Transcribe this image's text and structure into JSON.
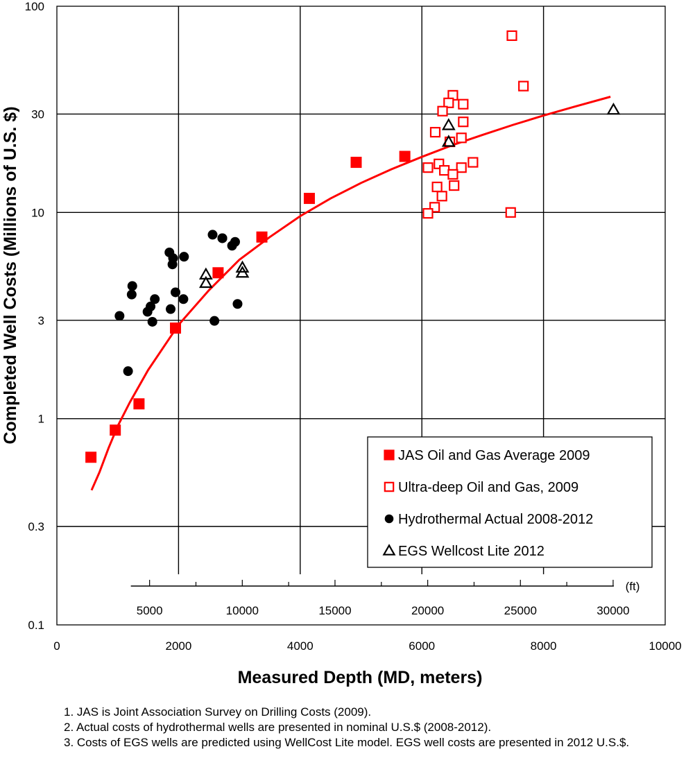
{
  "chart_data": {
    "type": "scatter",
    "title": "",
    "xlabel": "Measured Depth (MD, meters)",
    "ylabel": "Completed Well Costs (Millions of U.S. $)",
    "xlim": [
      0,
      10000
    ],
    "ylim": [
      0.1,
      100
    ],
    "yscale": "log",
    "grid": true,
    "legend_position": "bottom-right",
    "x_ticks": [
      "0",
      "2000",
      "4000",
      "6000",
      "8000",
      "10000"
    ],
    "y_ticks": [
      "0.1",
      "0.3",
      "1",
      "3",
      "10",
      "30",
      "100"
    ],
    "y_tick_values": [
      0.1,
      0.3,
      1,
      3,
      10,
      30,
      100
    ],
    "secondary_x_axis": {
      "unit_label": "(ft)",
      "ticks": [
        "5000",
        "10000",
        "15000",
        "20000",
        "25000",
        "30000"
      ],
      "tick_values": [
        5000,
        10000,
        15000,
        20000,
        25000,
        30000
      ]
    },
    "series": [
      {
        "name": "JAS Oil and Gas Average 2009",
        "marker": "filled-square",
        "color": "#ff0000",
        "points": [
          [
            560,
            0.65
          ],
          [
            960,
            0.88
          ],
          [
            1350,
            1.18
          ],
          [
            1950,
            2.75
          ],
          [
            2650,
            5.1
          ],
          [
            3370,
            7.6
          ],
          [
            4150,
            11.7
          ],
          [
            4920,
            17.5
          ],
          [
            5720,
            18.7
          ]
        ]
      },
      {
        "name": "Ultra-deep Oil and Gas, 2009",
        "marker": "open-square",
        "color": "#ff0000",
        "points": [
          [
            7480,
            72
          ],
          [
            7670,
            41
          ],
          [
            6510,
            37
          ],
          [
            6440,
            34
          ],
          [
            6680,
            33.5
          ],
          [
            6340,
            31
          ],
          [
            6680,
            27.5
          ],
          [
            6220,
            24.5
          ],
          [
            6650,
            23
          ],
          [
            6460,
            22
          ],
          [
            6840,
            17.5
          ],
          [
            6280,
            17.2
          ],
          [
            6100,
            16.5
          ],
          [
            6650,
            16.5
          ],
          [
            6370,
            16
          ],
          [
            6510,
            15.3
          ],
          [
            6250,
            13.3
          ],
          [
            6530,
            13.5
          ],
          [
            6330,
            12.0
          ],
          [
            6210,
            10.6
          ],
          [
            6100,
            9.9
          ],
          [
            7460,
            10.0
          ]
        ]
      },
      {
        "name": "Hydrothermal Actual 2008-2012",
        "marker": "filled-circle",
        "color": "#000000",
        "points": [
          [
            1030,
            3.15
          ],
          [
            1170,
            1.7
          ],
          [
            1230,
            4.0
          ],
          [
            1240,
            4.4
          ],
          [
            1490,
            3.3
          ],
          [
            1540,
            3.5
          ],
          [
            1570,
            2.95
          ],
          [
            1610,
            3.8
          ],
          [
            1850,
            6.4
          ],
          [
            1870,
            3.4
          ],
          [
            1900,
            5.6
          ],
          [
            1910,
            6.0
          ],
          [
            1950,
            4.1
          ],
          [
            2080,
            3.8
          ],
          [
            2090,
            6.1
          ],
          [
            2560,
            7.8
          ],
          [
            2590,
            2.98
          ],
          [
            2720,
            7.5
          ],
          [
            2720,
            7.5
          ],
          [
            2880,
            6.9
          ],
          [
            2930,
            7.2
          ],
          [
            2970,
            3.6
          ]
        ]
      },
      {
        "name": "EGS Wellcost Lite 2012",
        "marker": "open-triangle",
        "color": "#000000",
        "points": [
          [
            6440,
            26.5
          ],
          [
            6440,
            22.0
          ],
          [
            2450,
            5.0
          ],
          [
            2450,
            4.55
          ],
          [
            3050,
            5.4
          ],
          [
            3050,
            5.1
          ],
          [
            9150,
            31.5
          ]
        ]
      }
    ],
    "trend_line": {
      "color": "#ff0000",
      "points": [
        [
          570,
          0.45
        ],
        [
          700,
          0.55
        ],
        [
          850,
          0.72
        ],
        [
          1000,
          0.92
        ],
        [
          1200,
          1.2
        ],
        [
          1500,
          1.72
        ],
        [
          2000,
          2.85
        ],
        [
          2500,
          4.2
        ],
        [
          3000,
          5.9
        ],
        [
          3500,
          7.6
        ],
        [
          4000,
          9.6
        ],
        [
          4500,
          11.7
        ],
        [
          5000,
          13.9
        ],
        [
          5500,
          16.2
        ],
        [
          6000,
          18.6
        ],
        [
          6500,
          21.2
        ],
        [
          7000,
          23.8
        ],
        [
          7500,
          26.6
        ],
        [
          8000,
          29.5
        ],
        [
          8500,
          32.5
        ],
        [
          9100,
          36.4
        ]
      ]
    }
  },
  "notes": [
    "1. JAS is Joint Association Survey on Drilling Costs (2009).",
    "2. Actual costs of hydrothermal wells are presented in nominal U.S.$ (2008-2012).",
    "3. Costs of EGS wells are predicted using WellCost Lite model. EGS well costs are presented in 2012 U.S.$."
  ]
}
